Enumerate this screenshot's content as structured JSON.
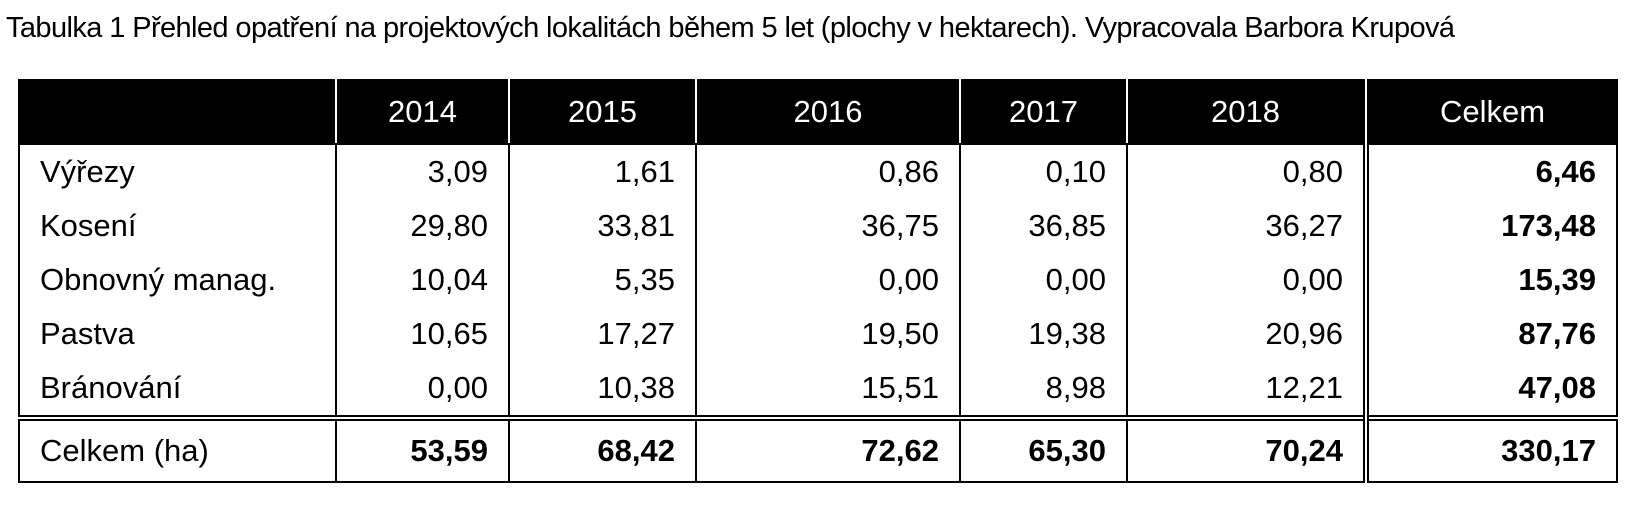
{
  "caption": "Tabulka 1 Přehled opatření na projektových lokalitách během 5 let (plochy v hektarech). Vypracovala Barbora Krupová",
  "table": {
    "headers": [
      "",
      "2014",
      "2015",
      "2016",
      "2017",
      "2018",
      "Celkem"
    ],
    "rows": [
      {
        "label": "Výřezy",
        "values": [
          "3,09",
          "1,61",
          "0,86",
          "0,10",
          "0,80"
        ],
        "total": "6,46"
      },
      {
        "label": "Kosení",
        "values": [
          "29,80",
          "33,81",
          "36,75",
          "36,85",
          "36,27"
        ],
        "total": "173,48"
      },
      {
        "label": "Obnovný manag.",
        "values": [
          "10,04",
          "5,35",
          "0,00",
          "0,00",
          "0,00"
        ],
        "total": "15,39"
      },
      {
        "label": "Pastva",
        "values": [
          "10,65",
          "17,27",
          "19,50",
          "19,38",
          "20,96"
        ],
        "total": "87,76"
      },
      {
        "label": "Bránování",
        "values": [
          "0,00",
          "10,38",
          "15,51",
          "8,98",
          "12,21"
        ],
        "total": "47,08"
      }
    ],
    "footer": {
      "label": "Celkem (ha)",
      "values": [
        "53,59",
        "68,42",
        "72,62",
        "65,30",
        "70,24"
      ],
      "total": "330,17"
    }
  }
}
